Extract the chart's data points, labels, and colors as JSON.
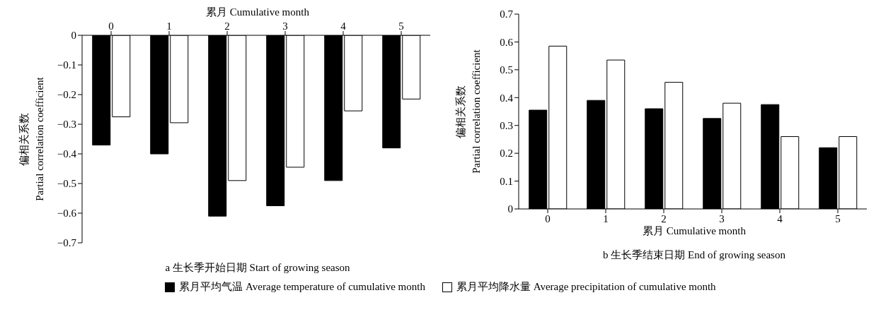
{
  "chart_data": [
    {
      "type": "bar",
      "title": "a 生长季开始日期 Start of growing season",
      "xlabel": "累月 Cumulative month",
      "ylabel": "偏相关系数 Partial correlation coefficient",
      "categories": [
        "0",
        "1",
        "2",
        "3",
        "4",
        "5"
      ],
      "series": [
        {
          "name": "累月平均气温 Average temperature of cumulative month",
          "color": "#000000",
          "values": [
            -0.37,
            -0.4,
            -0.61,
            -0.575,
            -0.49,
            -0.38
          ]
        },
        {
          "name": "累月平均降水量 Average precipitation  of cumulative month",
          "color": "#ffffff",
          "values": [
            -0.275,
            -0.295,
            -0.49,
            -0.445,
            -0.255,
            -0.215
          ]
        }
      ],
      "ylim": [
        -0.7,
        0
      ],
      "yticks": [
        {
          "value": -0.7,
          "label": "−0.7"
        },
        {
          "value": -0.6,
          "label": "−0.6"
        },
        {
          "value": -0.5,
          "label": "−0.5"
        },
        {
          "value": -0.4,
          "label": "−0.4"
        },
        {
          "value": -0.3,
          "label": "−0.3"
        },
        {
          "value": -0.2,
          "label": "−0.2"
        },
        {
          "value": -0.1,
          "label": "−0.1"
        },
        0
      ],
      "grid": false,
      "legend": "bottom"
    },
    {
      "type": "bar",
      "title": "b 生长季结束日期 End of growing season",
      "xlabel": "累月 Cumulative month",
      "ylabel": "偏相关系数 Partial correlation coefficient",
      "categories": [
        "0",
        "1",
        "2",
        "3",
        "4",
        "5"
      ],
      "series": [
        {
          "color": "#000000",
          "values": [
            0.355,
            0.39,
            0.36,
            0.325,
            0.375,
            0.22
          ]
        },
        {
          "color": "#ffffff",
          "values": [
            0.585,
            0.535,
            0.455,
            0.38,
            0.26,
            0.26
          ]
        }
      ],
      "ylim": [
        0,
        0.7
      ],
      "yticks": [
        0,
        0.1,
        0.2,
        0.3,
        0.4,
        0.5,
        0.6,
        0.7
      ],
      "grid": false
    }
  ]
}
